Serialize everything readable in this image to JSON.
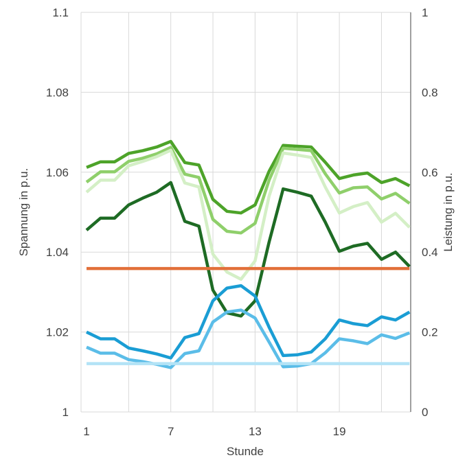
{
  "chart_data": {
    "type": "line",
    "xlabel": "Stunde",
    "ylabel_left": "Spannung in p.u.",
    "ylabel_right": "Leistung in p.u.",
    "x": [
      1,
      2,
      3,
      4,
      5,
      6,
      7,
      8,
      9,
      10,
      11,
      12,
      13,
      14,
      15,
      16,
      17,
      18,
      19,
      20,
      21,
      22,
      23,
      24
    ],
    "x_tick_labels": [
      "1",
      "7",
      "13",
      "19"
    ],
    "x_tick_values": [
      1,
      7,
      13,
      19
    ],
    "ylim_left": [
      1,
      1.1
    ],
    "y_tick_labels_left": [
      "1",
      "1.02",
      "1.04",
      "1.06",
      "1.08",
      "1.1"
    ],
    "y_tick_values_left": [
      1,
      1.02,
      1.04,
      1.06,
      1.08,
      1.1
    ],
    "ylim_right": [
      0,
      1
    ],
    "y_tick_labels_right": [
      "0",
      "0.2",
      "0.4",
      "0.6",
      "0.8",
      "1"
    ],
    "y_tick_values_right": [
      0,
      0.2,
      0.4,
      0.6,
      0.8,
      1
    ],
    "grid": true,
    "legend": "none",
    "series": [
      {
        "axis": "left",
        "color": "#1e6b24",
        "values": [
          1.0455,
          1.0485,
          1.0485,
          1.0518,
          1.0535,
          1.055,
          1.0574,
          1.0477,
          1.0465,
          1.0305,
          1.0248,
          1.024,
          1.0278,
          1.0425,
          1.0558,
          1.055,
          1.054,
          1.0475,
          1.0402,
          1.0415,
          1.0422,
          1.0382,
          1.04,
          1.0364
        ]
      },
      {
        "axis": "left",
        "color": "#4da329",
        "values": [
          1.0612,
          1.0626,
          1.0626,
          1.0647,
          1.0654,
          1.0663,
          1.0677,
          1.0624,
          1.0618,
          1.0532,
          1.0502,
          1.0498,
          1.0518,
          1.0602,
          1.0667,
          1.0665,
          1.0663,
          1.0625,
          1.0584,
          1.0593,
          1.0598,
          1.0574,
          1.0584,
          1.0566
        ]
      },
      {
        "axis": "left",
        "color": "#8fcf6b",
        "values": [
          1.0575,
          1.0601,
          1.0601,
          1.0627,
          1.0635,
          1.0646,
          1.0662,
          1.0595,
          1.0587,
          1.0482,
          1.0452,
          1.0448,
          1.0472,
          1.058,
          1.066,
          1.0657,
          1.0654,
          1.0596,
          1.0548,
          1.0561,
          1.0563,
          1.0533,
          1.0547,
          1.0522
        ]
      },
      {
        "axis": "left",
        "color": "#d4efc6",
        "values": [
          1.055,
          1.058,
          1.058,
          1.0616,
          1.0627,
          1.0639,
          1.0655,
          1.0573,
          1.0563,
          1.0395,
          1.035,
          1.0332,
          1.0378,
          1.054,
          1.0648,
          1.0643,
          1.0637,
          1.0563,
          1.0498,
          1.0514,
          1.0524,
          1.0475,
          1.0497,
          1.0462
        ]
      },
      {
        "axis": "right",
        "color": "#e2703a",
        "values": [
          0.359,
          0.359,
          0.359,
          0.359,
          0.359,
          0.359,
          0.359,
          0.359,
          0.359,
          0.359,
          0.359,
          0.359,
          0.359,
          0.359,
          0.359,
          0.359,
          0.359,
          0.359,
          0.359,
          0.359,
          0.359,
          0.359,
          0.359,
          0.359
        ]
      },
      {
        "axis": "right",
        "color": "#1a9dd4",
        "values": [
          0.2,
          0.183,
          0.183,
          0.16,
          0.153,
          0.145,
          0.135,
          0.186,
          0.196,
          0.278,
          0.31,
          0.316,
          0.29,
          0.212,
          0.141,
          0.143,
          0.15,
          0.183,
          0.23,
          0.221,
          0.216,
          0.238,
          0.23,
          0.25
        ]
      },
      {
        "axis": "right",
        "color": "#5bbde8",
        "values": [
          0.162,
          0.147,
          0.147,
          0.131,
          0.126,
          0.119,
          0.111,
          0.146,
          0.153,
          0.225,
          0.25,
          0.255,
          0.235,
          0.175,
          0.113,
          0.115,
          0.121,
          0.148,
          0.183,
          0.178,
          0.171,
          0.193,
          0.184,
          0.198
        ]
      },
      {
        "axis": "right",
        "color": "#b3e3f6",
        "values": [
          0.121,
          0.121,
          0.121,
          0.121,
          0.121,
          0.121,
          0.121,
          0.121,
          0.121,
          0.121,
          0.121,
          0.121,
          0.121,
          0.121,
          0.121,
          0.121,
          0.121,
          0.121,
          0.121,
          0.121,
          0.121,
          0.121,
          0.121,
          0.121
        ]
      }
    ]
  }
}
